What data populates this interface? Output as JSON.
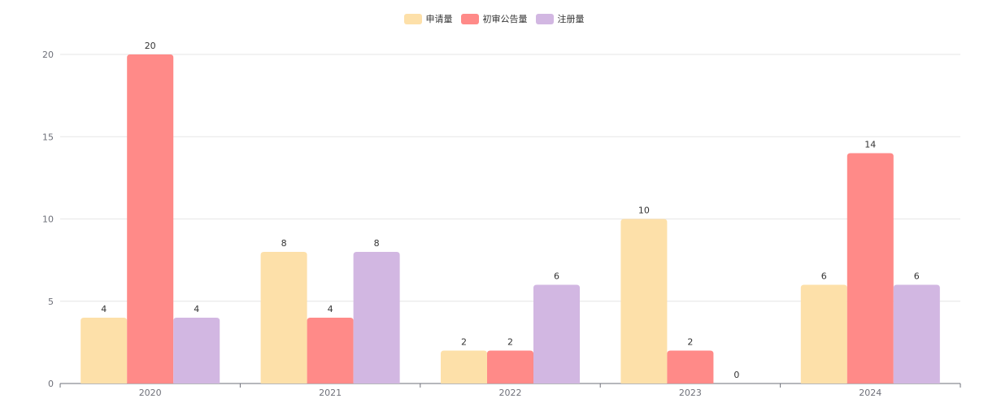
{
  "chart_data": {
    "type": "bar",
    "categories": [
      "2020",
      "2021",
      "2022",
      "2023",
      "2024"
    ],
    "series": [
      {
        "name": "申请量",
        "color": "#fde0a9",
        "values": [
          4,
          8,
          2,
          10,
          6
        ]
      },
      {
        "name": "初审公告量",
        "color": "#ff8a88",
        "values": [
          20,
          4,
          2,
          2,
          14
        ]
      },
      {
        "name": "注册量",
        "color": "#d2b7e2",
        "values": [
          4,
          8,
          6,
          0,
          6
        ]
      }
    ],
    "ylim": [
      0,
      20
    ],
    "yticks": [
      0,
      5,
      10,
      15,
      20
    ],
    "grid": true,
    "legend_position": "top-center",
    "show_data_labels": true
  }
}
